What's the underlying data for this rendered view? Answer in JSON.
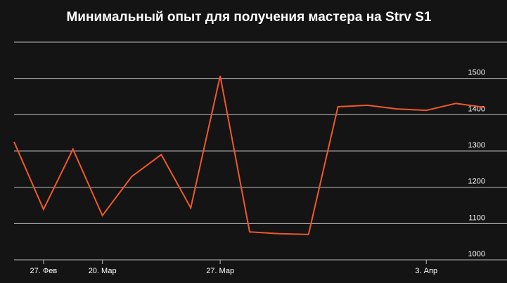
{
  "chart_data": {
    "type": "line",
    "title": "Минимальный опыт для получения мастера на Strv S1",
    "categories": [
      null,
      "27. Фев",
      null,
      "20. Мар",
      null,
      null,
      null,
      "27. Мар",
      null,
      null,
      null,
      null,
      null,
      null,
      "3. Апр",
      null,
      null
    ],
    "series": [
      {
        "name": "Strv S1",
        "color": "#f0582a",
        "values": [
          1325,
          1139,
          1305,
          1122,
          1230,
          1290,
          1143,
          1507,
          1077,
          1072,
          1070,
          1422,
          1426,
          1416,
          1412,
          1431,
          1420
        ]
      }
    ],
    "ylim": [
      1000,
      1600
    ],
    "yticks": [
      1000,
      1100,
      1200,
      1300,
      1400,
      1500
    ],
    "grid": true
  }
}
